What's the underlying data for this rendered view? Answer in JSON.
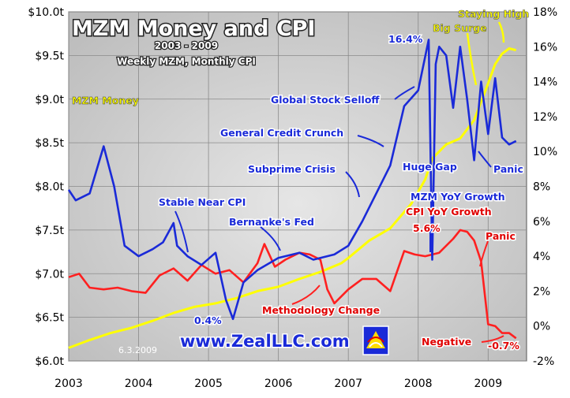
{
  "chart_data": {
    "type": "line",
    "title": "MZM Money and CPI",
    "subtitle_years": "2003 - 2009",
    "subtitle_freq": "Weekly MZM, Monthly CPI",
    "date_stamp": "6.3.2009",
    "watermark": "www.ZealLLC.com",
    "x_ticks": [
      "2003",
      "2004",
      "2005",
      "2006",
      "2007",
      "2008",
      "2009"
    ],
    "left_ticks": [
      "$6.0t",
      "$6.5t",
      "$7.0t",
      "$7.5t",
      "$8.0t",
      "$8.5t",
      "$9.0t",
      "$9.5t",
      "$10.0t"
    ],
    "right_ticks": [
      "-2%",
      "0%",
      "2%",
      "4%",
      "6%",
      "8%",
      "10%",
      "12%",
      "14%",
      "16%",
      "18%"
    ],
    "left_ylim": [
      6.0,
      10.0
    ],
    "right_ylim": [
      -2,
      18
    ],
    "xlim": [
      2003.0,
      2009.55
    ],
    "colors": {
      "mzm": "#ffff00",
      "mzm_yoy": "#1a2ad8",
      "cpi_yoy": "#ff2020",
      "grid": "#8a8a8a",
      "plot_bg": "#b8b8b8"
    },
    "series": [
      {
        "name": "MZM Money",
        "axis": "left",
        "color": "#ffff00",
        "x": [
          2003.0,
          2003.3,
          2003.6,
          2003.9,
          2004.2,
          2004.5,
          2004.8,
          2005.1,
          2005.4,
          2005.7,
          2006.0,
          2006.3,
          2006.6,
          2006.9,
          2007.0,
          2007.3,
          2007.6,
          2007.9,
          2008.1,
          2008.2,
          2008.4,
          2008.6,
          2008.8,
          2009.0,
          2009.1,
          2009.2,
          2009.3,
          2009.4
        ],
        "y": [
          6.15,
          6.24,
          6.32,
          6.38,
          6.46,
          6.55,
          6.62,
          6.66,
          6.72,
          6.8,
          6.85,
          6.94,
          7.02,
          7.12,
          7.18,
          7.38,
          7.52,
          7.8,
          8.08,
          8.32,
          8.48,
          8.55,
          8.76,
          9.18,
          9.4,
          9.52,
          9.58,
          9.56
        ]
      },
      {
        "name": "MZM YoY Growth",
        "axis": "right",
        "color": "#1a2ad8",
        "x": [
          2003.0,
          2003.1,
          2003.3,
          2003.5,
          2003.65,
          2003.8,
          2004.0,
          2004.2,
          2004.35,
          2004.5,
          2004.55,
          2004.7,
          2004.9,
          2005.1,
          2005.25,
          2005.35,
          2005.5,
          2005.7,
          2006.0,
          2006.3,
          2006.5,
          2006.8,
          2007.0,
          2007.2,
          2007.4,
          2007.6,
          2007.8,
          2008.0,
          2008.15,
          2008.2,
          2008.25,
          2008.3,
          2008.4,
          2008.5,
          2008.6,
          2008.7,
          2008.8,
          2008.9,
          2009.0,
          2009.1,
          2009.2,
          2009.3,
          2009.4
        ],
        "y": [
          7.8,
          7.2,
          7.6,
          10.3,
          8.0,
          4.6,
          4.0,
          4.4,
          4.8,
          5.9,
          4.6,
          4.0,
          3.5,
          4.2,
          1.5,
          0.4,
          2.5,
          3.2,
          3.9,
          4.2,
          3.8,
          4.1,
          4.6,
          6.0,
          7.6,
          9.2,
          12.6,
          13.5,
          16.4,
          3.8,
          15.0,
          16.0,
          15.5,
          12.5,
          16.0,
          13.0,
          9.5,
          14.0,
          11.0,
          14.2,
          10.8,
          10.4,
          10.6
        ]
      },
      {
        "name": "CPI YoY Growth",
        "axis": "right",
        "color": "#ff2020",
        "x": [
          2003.0,
          2003.15,
          2003.3,
          2003.5,
          2003.7,
          2003.9,
          2004.1,
          2004.3,
          2004.5,
          2004.7,
          2004.9,
          2005.1,
          2005.3,
          2005.5,
          2005.7,
          2005.8,
          2005.95,
          2006.1,
          2006.3,
          2006.45,
          2006.6,
          2006.7,
          2006.8,
          2007.0,
          2007.2,
          2007.4,
          2007.6,
          2007.8,
          2007.95,
          2008.1,
          2008.3,
          2008.5,
          2008.6,
          2008.7,
          2008.8,
          2008.9,
          2009.0,
          2009.1,
          2009.2,
          2009.3,
          2009.4
        ],
        "y": [
          2.8,
          3.0,
          2.2,
          2.1,
          2.2,
          2.0,
          1.9,
          2.9,
          3.3,
          2.6,
          3.5,
          3.0,
          3.2,
          2.5,
          3.6,
          4.7,
          3.4,
          3.8,
          4.2,
          4.1,
          3.8,
          2.1,
          1.3,
          2.1,
          2.7,
          2.7,
          2.0,
          4.3,
          4.1,
          4.0,
          4.2,
          5.0,
          5.5,
          5.4,
          4.9,
          3.7,
          0.1,
          0.0,
          -0.4,
          -0.4,
          -0.7
        ]
      }
    ],
    "annotations": [
      {
        "text": "MZM Money",
        "color": "yellow"
      },
      {
        "text": "Stable Near CPI",
        "color": "blue"
      },
      {
        "text": "Bernanke's Fed",
        "color": "blue"
      },
      {
        "text": "Subprime Crisis",
        "color": "blue"
      },
      {
        "text": "General Credit Crunch",
        "color": "blue"
      },
      {
        "text": "Global Stock Selloff",
        "color": "blue"
      },
      {
        "text": "16.4%",
        "color": "blue"
      },
      {
        "text": "Staying High",
        "color": "yellow"
      },
      {
        "text": "Big Surge",
        "color": "yellow"
      },
      {
        "text": "Huge Gap",
        "color": "blue"
      },
      {
        "text": "MZM YoY Growth",
        "color": "blue"
      },
      {
        "text": "CPI YoY Growth",
        "color": "red"
      },
      {
        "text": "5.6%",
        "color": "red"
      },
      {
        "text": "Panic",
        "color": "blue"
      },
      {
        "text": "Panic",
        "color": "red"
      },
      {
        "text": "0.4%",
        "color": "blue"
      },
      {
        "text": "Methodology Change",
        "color": "red"
      },
      {
        "text": "Negative",
        "color": "red"
      },
      {
        "text": "-0.7%",
        "color": "red"
      }
    ]
  }
}
